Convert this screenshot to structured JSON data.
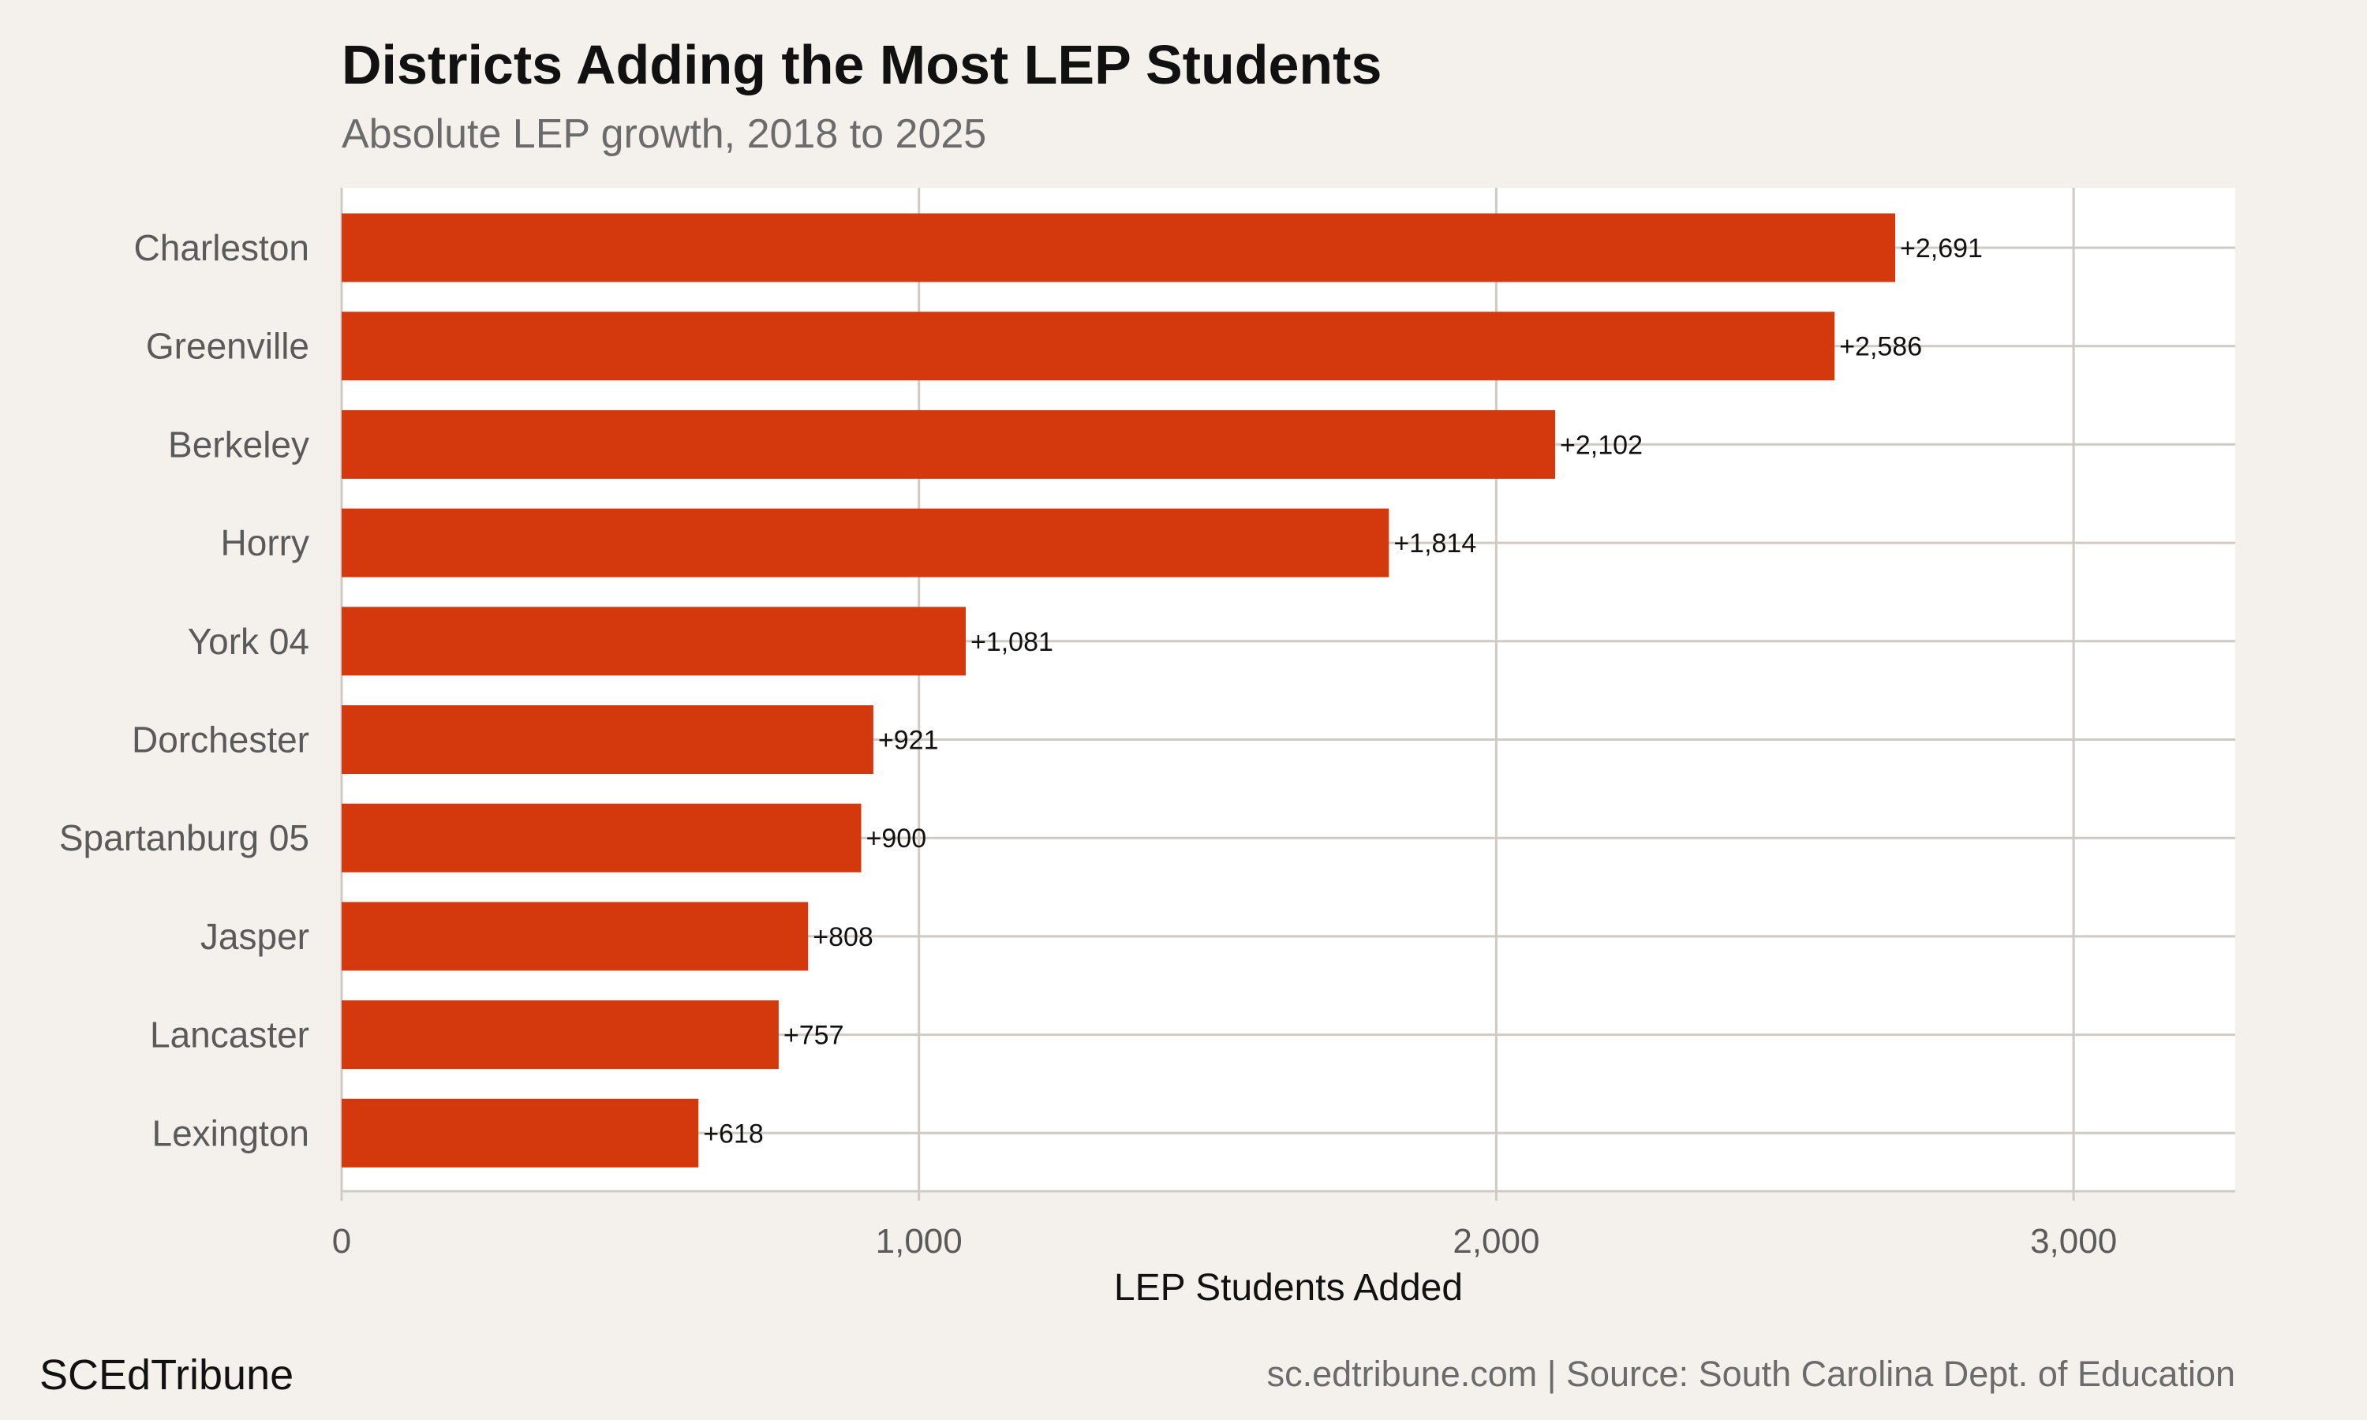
{
  "header": {
    "title": "Districts Adding the Most LEP Students",
    "subtitle": "Absolute LEP growth, 2018 to 2025"
  },
  "footer": {
    "brand": "SCEdTribune",
    "source": "sc.edtribune.com | Source: South Carolina Dept. of Education"
  },
  "colors": {
    "bar": "#d4380d",
    "panel": "#ffffff",
    "background": "#f4f1ec",
    "grid": "#cfcbc4"
  },
  "chart_data": {
    "type": "bar",
    "orientation": "horizontal",
    "title": "Districts Adding the Most LEP Students",
    "subtitle": "Absolute LEP growth, 2018 to 2025",
    "xlabel": "LEP Students Added",
    "ylabel": "",
    "categories": [
      "Charleston",
      "Greenville",
      "Berkeley",
      "Horry",
      "York 04",
      "Dorchester",
      "Spartanburg 05",
      "Jasper",
      "Lancaster",
      "Lexington"
    ],
    "values": [
      2691,
      2586,
      2102,
      1814,
      1081,
      921,
      900,
      808,
      757,
      618
    ],
    "data_labels": [
      "+2,691",
      "+2,586",
      "+2,102",
      "+1,814",
      "+1,081",
      "+921",
      "+900",
      "+808",
      "+757",
      "+618"
    ],
    "xlim": [
      0,
      3280
    ],
    "x_ticks": [
      0,
      1000,
      2000,
      3000
    ],
    "x_tick_labels": [
      "0",
      "1,000",
      "2,000",
      "3,000"
    ],
    "grid": true,
    "legend": "none"
  }
}
